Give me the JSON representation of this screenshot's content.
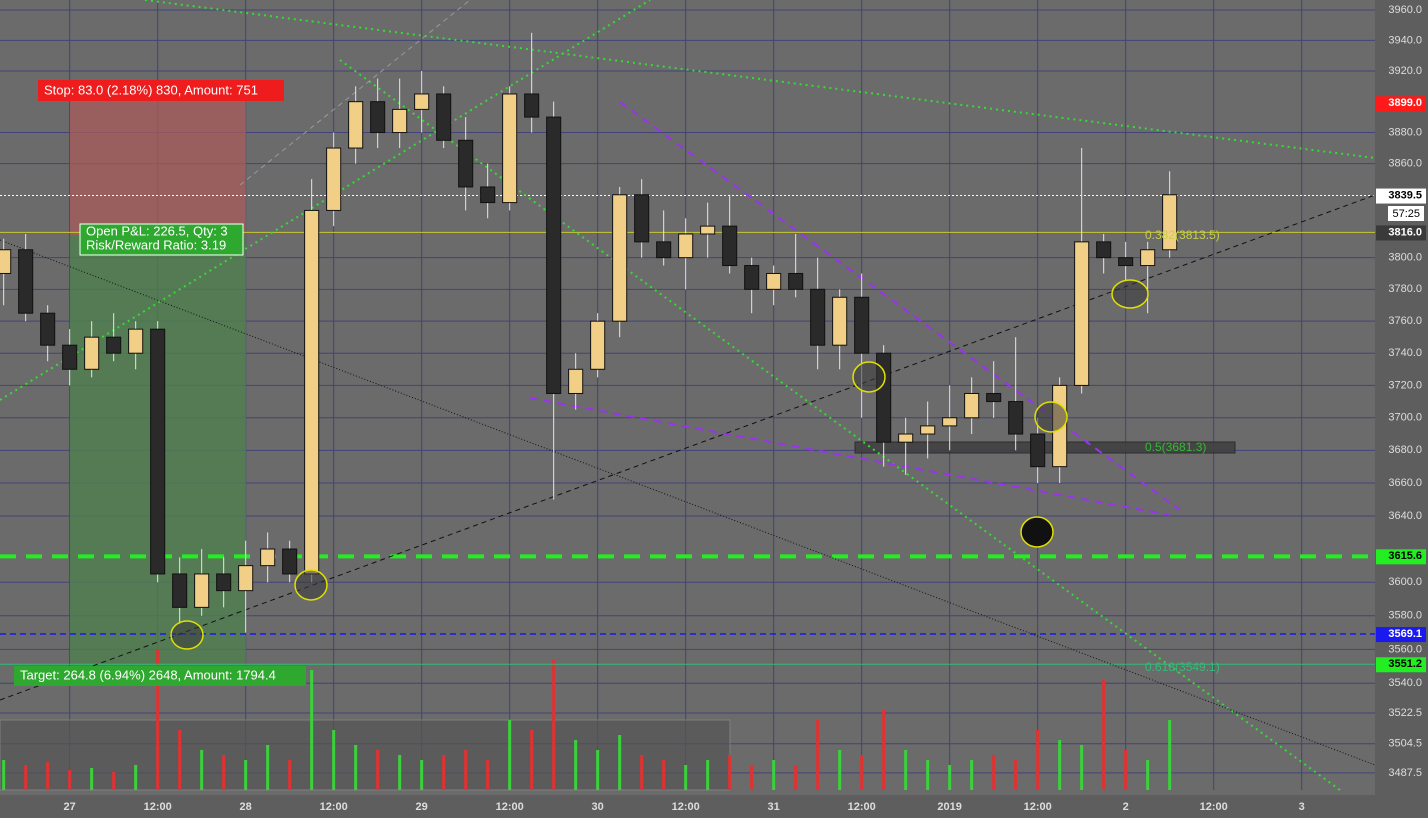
{
  "chart_data": {
    "type": "candlestick",
    "log_scale": true,
    "grid": true,
    "up_color": "#f2cf86",
    "down_color": "#2a2a2a",
    "wick_color": "#e6e6e6",
    "volume_up_color": "#3ad23a",
    "volume_down_color": "#e23131",
    "xlim": [
      -9.5,
      178
    ],
    "ylim": [
      3477.6,
      3966.6
    ],
    "xticks": [
      {
        "value": 0,
        "label": "27"
      },
      {
        "value": 12,
        "label": "12:00"
      },
      {
        "value": 24,
        "label": "28"
      },
      {
        "value": 36,
        "label": "12:00"
      },
      {
        "value": 48,
        "label": "29"
      },
      {
        "value": 60,
        "label": "12:00"
      },
      {
        "value": 72,
        "label": "30"
      },
      {
        "value": 84,
        "label": "12:00"
      },
      {
        "value": 96,
        "label": "31"
      },
      {
        "value": 108,
        "label": "12:00"
      },
      {
        "value": 120,
        "label": "2019"
      },
      {
        "value": 132,
        "label": "12:00"
      },
      {
        "value": 144,
        "label": "2"
      },
      {
        "value": 156,
        "label": "12:00"
      },
      {
        "value": 168,
        "label": "3"
      }
    ],
    "yticks": [
      {
        "value": 3960,
        "label": "3960.0"
      },
      {
        "value": 3940,
        "label": "3940.0"
      },
      {
        "value": 3920,
        "label": "3920.0"
      },
      {
        "value": 3880,
        "label": "3880.0"
      },
      {
        "value": 3860,
        "label": "3860.0"
      },
      {
        "value": 3800,
        "label": "3800.0"
      },
      {
        "value": 3780,
        "label": "3780.0"
      },
      {
        "value": 3760,
        "label": "3760.0"
      },
      {
        "value": 3740,
        "label": "3740.0"
      },
      {
        "value": 3720,
        "label": "3720.0"
      },
      {
        "value": 3700,
        "label": "3700.0"
      },
      {
        "value": 3680,
        "label": "3680.0"
      },
      {
        "value": 3660,
        "label": "3660.0"
      },
      {
        "value": 3640,
        "label": "3640.0"
      },
      {
        "value": 3600,
        "label": "3600.0"
      },
      {
        "value": 3580,
        "label": "3580.0"
      },
      {
        "value": 3560,
        "label": "3560.0"
      },
      {
        "value": 3540,
        "label": "3540.0"
      },
      {
        "value": 3522.5,
        "label": "3522.5"
      },
      {
        "value": 3504.5,
        "label": "3504.5"
      },
      {
        "value": 3487.5,
        "label": "3487.5"
      }
    ],
    "x": [
      -9,
      -6,
      -3,
      0,
      3,
      6,
      9,
      12,
      15,
      18,
      21,
      24,
      27,
      30,
      33,
      36,
      39,
      42,
      45,
      48,
      51,
      54,
      57,
      60,
      63,
      66,
      69,
      72,
      75,
      78,
      81,
      84,
      87,
      90,
      93,
      96,
      99,
      102,
      105,
      108,
      111,
      114,
      117,
      120,
      123,
      126,
      129,
      132,
      135,
      138,
      141,
      144,
      147,
      150
    ],
    "open": [
      3790,
      3805,
      3765,
      3745,
      3730,
      3750,
      3740,
      3755,
      3605,
      3585,
      3605,
      3595,
      3610,
      3620,
      3605,
      3830,
      3870,
      3900,
      3880,
      3895,
      3905,
      3875,
      3845,
      3835,
      3905,
      3890,
      3715,
      3730,
      3760,
      3840,
      3810,
      3800,
      3815,
      3820,
      3795,
      3780,
      3790,
      3780,
      3745,
      3775,
      3740,
      3685,
      3690,
      3695,
      3700,
      3715,
      3710,
      3690,
      3670,
      3720,
      3810,
      3800,
      3795,
      3805
    ],
    "high": [
      3812,
      3815,
      3770,
      3755,
      3760,
      3765,
      3760,
      3760,
      3615,
      3620,
      3615,
      3625,
      3630,
      3625,
      3850,
      3880,
      3910,
      3915,
      3915,
      3920,
      3910,
      3890,
      3860,
      3910,
      3945,
      3900,
      3740,
      3765,
      3845,
      3850,
      3830,
      3825,
      3835,
      3840,
      3800,
      3795,
      3815,
      3800,
      3780,
      3790,
      3745,
      3700,
      3710,
      3720,
      3725,
      3735,
      3750,
      3700,
      3725,
      3870,
      3815,
      3810,
      3810,
      3855
    ],
    "low": [
      3770,
      3760,
      3735,
      3720,
      3725,
      3735,
      3730,
      3600,
      3575,
      3580,
      3585,
      3570,
      3600,
      3600,
      3600,
      3820,
      3860,
      3870,
      3870,
      3880,
      3870,
      3830,
      3825,
      3830,
      3880,
      3650,
      3705,
      3725,
      3750,
      3800,
      3795,
      3780,
      3800,
      3790,
      3765,
      3770,
      3775,
      3730,
      3730,
      3700,
      3670,
      3665,
      3675,
      3680,
      3690,
      3700,
      3680,
      3660,
      3660,
      3715,
      3790,
      3785,
      3765,
      3800
    ],
    "close": [
      3805,
      3765,
      3745,
      3730,
      3750,
      3740,
      3755,
      3605,
      3585,
      3605,
      3595,
      3610,
      3620,
      3605,
      3830,
      3870,
      3900,
      3880,
      3895,
      3905,
      3875,
      3845,
      3835,
      3905,
      3890,
      3715,
      3730,
      3760,
      3840,
      3810,
      3800,
      3815,
      3820,
      3795,
      3780,
      3790,
      3780,
      3745,
      3775,
      3740,
      3685,
      3690,
      3695,
      3700,
      3715,
      3710,
      3690,
      3670,
      3720,
      3810,
      3800,
      3795,
      3805,
      3840
    ],
    "volume": [
      30,
      25,
      28,
      20,
      22,
      18,
      25,
      140,
      60,
      40,
      35,
      30,
      45,
      30,
      120,
      60,
      45,
      40,
      35,
      30,
      35,
      40,
      30,
      70,
      60,
      130,
      50,
      40,
      55,
      35,
      30,
      25,
      30,
      35,
      25,
      30,
      25,
      70,
      40,
      35,
      80,
      40,
      30,
      25,
      30,
      35,
      30,
      60,
      50,
      45,
      110,
      40,
      30,
      70
    ],
    "price_lines": [
      {
        "value": 3899,
        "label": "3899.0",
        "color": "#ff1a1a",
        "label_text_color": "#ffffff",
        "style": "none"
      },
      {
        "value": 3839.5,
        "label": "3839.5",
        "color": "#ffffff",
        "label_text_color": "#000000",
        "style": "dotted"
      },
      {
        "value": 3816,
        "label": "3816.0",
        "color": "#c8c832",
        "label_text_color": "#ffffff",
        "label_fill": "#3a3a3a",
        "style": "solid"
      },
      {
        "value": 3615.6,
        "label": "3615.6",
        "color": "#22ee22",
        "label_text_color": "#000000",
        "style": "thick-dashed"
      },
      {
        "value": 3569.1,
        "label": "3569.1",
        "color": "#1a1aee",
        "label_text_color": "#ffffff",
        "style": "dashed"
      },
      {
        "value": 3551.2,
        "label": "3551.2",
        "color": "#33bb77",
        "label_text_color": "#000000",
        "label_fill": "#22ee22",
        "style": "solid"
      }
    ],
    "countdown": "57:25",
    "annotations": {
      "stop": "Stop: 83.0 (2.18%) 830, Amount: 751",
      "open_pnl": "Open P&L: 226.5, Qty: 3",
      "risk_reward": "Risk/Reward Ratio: 3.19",
      "target": "Target: 264.8 (6.94%) 2648, Amount: 1794.4",
      "fib_382": "0.382(3813.5)",
      "fib_5": "0.5(3681.3)",
      "fib_618": "0.618(3549.1)"
    }
  }
}
